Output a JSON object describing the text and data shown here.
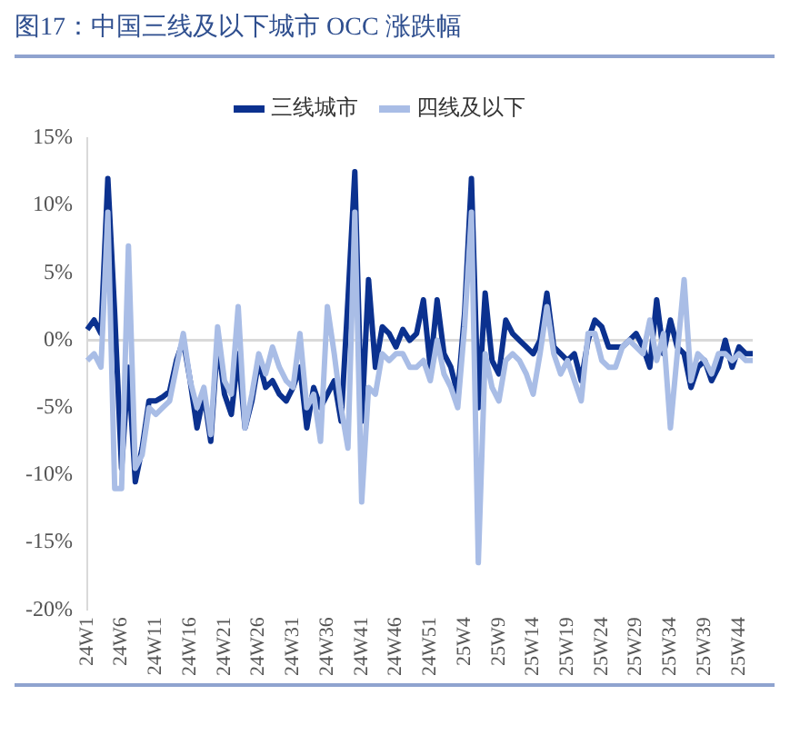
{
  "chart_data": {
    "type": "line",
    "title": "图17：中国三线及以下城市 OCC 涨跌幅",
    "categories": [
      "24W1",
      null,
      null,
      null,
      null,
      "24W6",
      null,
      null,
      null,
      null,
      "24W11",
      null,
      null,
      null,
      null,
      "24W16",
      null,
      null,
      null,
      null,
      "24W21",
      null,
      null,
      null,
      null,
      "24W26",
      null,
      null,
      null,
      null,
      "24W31",
      null,
      null,
      null,
      null,
      "24W36",
      null,
      null,
      null,
      null,
      "24W41",
      null,
      null,
      null,
      null,
      "24W46",
      null,
      null,
      null,
      null,
      "24W51",
      null,
      null,
      null,
      null,
      "25W4",
      null,
      null,
      null,
      null,
      "25W9",
      null,
      null,
      null,
      null,
      "25W14",
      null,
      null,
      null,
      null,
      "25W19",
      null,
      null,
      null,
      null,
      "25W24",
      null,
      null,
      null,
      null,
      "25W29",
      null,
      null,
      null,
      null,
      "25W34",
      null,
      null,
      null,
      null,
      "25W39",
      null,
      null,
      null,
      null,
      "25W44",
      null,
      null
    ],
    "series": [
      {
        "name": "三线城市",
        "color": "#0b318f",
        "values": [
          0.8,
          1.5,
          0.5,
          12,
          2,
          -9.5,
          -2,
          -10.5,
          -8,
          -4.5,
          -4.5,
          -4.2,
          -3.8,
          -1.5,
          0,
          -3,
          -6.5,
          -4,
          -7.5,
          0,
          -4,
          -5.5,
          -1,
          -6.5,
          -4.5,
          -1.5,
          -3.5,
          -3,
          -4,
          -4.5,
          -3.5,
          -2,
          -6.5,
          -3.5,
          -5,
          null,
          -3,
          -6,
          3,
          12.5,
          -6,
          4.5,
          -2,
          1,
          0.5,
          -0.5,
          0.8,
          0,
          0.5,
          3,
          -2,
          3,
          -1,
          -2,
          -4,
          2,
          12,
          -5,
          3.5,
          -1.5,
          -2.5,
          1.5,
          0.5,
          0,
          -0.5,
          -1,
          0,
          3.5,
          -0.5,
          -1,
          -1.5,
          -1,
          -3,
          0,
          1.5,
          1,
          -0.5,
          -0.5,
          -0.5,
          0,
          0.5,
          -0.5,
          -2,
          3,
          -1,
          1.5,
          -0.5,
          -1,
          -3.5,
          -2,
          -1.5,
          -3,
          -2,
          0,
          -2,
          -0.5,
          -1,
          -1
        ]
      },
      {
        "name": "四线及以下",
        "color": "#a9bde6",
        "values": [
          -1.5,
          -1,
          -2,
          9.5,
          -11,
          -11,
          7,
          -9.5,
          -8.5,
          -5,
          -5.5,
          -5,
          -4.5,
          -2,
          0.5,
          -3,
          -5,
          -3.5,
          -7,
          1,
          -3,
          -4,
          2.5,
          -6.5,
          -4,
          -1,
          -2.5,
          -0.5,
          -2,
          -3,
          -3.5,
          0.5,
          -5,
          -4,
          -7.5,
          2.5,
          -1,
          -5,
          -8,
          9.5,
          -12,
          -3.5,
          -4,
          -1,
          -1.5,
          -1,
          -1,
          -2,
          -2,
          -1.5,
          -3,
          0,
          -2.5,
          -3.5,
          -5,
          1,
          9.5,
          -16.5,
          -1,
          -3.5,
          -4.5,
          -1.5,
          -1,
          -1.5,
          -2.5,
          -4,
          -1,
          2.5,
          -1,
          -2.5,
          -1.5,
          -3,
          -4.5,
          0.5,
          0.5,
          -1.5,
          -2,
          -2,
          -0.5,
          0,
          -0.5,
          -1,
          1.5,
          -1.5,
          0.5,
          -6.5,
          -1,
          4.5,
          -3,
          -1,
          -1.5,
          -2.5,
          -1,
          -1,
          -1.5,
          -1,
          -1.5,
          -1.5
        ]
      }
    ],
    "ylim": [
      -20,
      15
    ],
    "yticks": [
      {
        "value": 15,
        "label": "15%"
      },
      {
        "value": 10,
        "label": "10%"
      },
      {
        "value": 5,
        "label": "5%"
      },
      {
        "value": 0,
        "label": "0%"
      },
      {
        "value": -5,
        "label": "-5%"
      },
      {
        "value": -10,
        "label": "-10%"
      },
      {
        "value": -15,
        "label": "-15%"
      },
      {
        "value": -20,
        "label": "-20%"
      }
    ],
    "ref_lines": [
      {
        "axis": "y",
        "value": 0,
        "color": "#d9d9d9"
      }
    ],
    "legend": "top",
    "marker": "none"
  }
}
